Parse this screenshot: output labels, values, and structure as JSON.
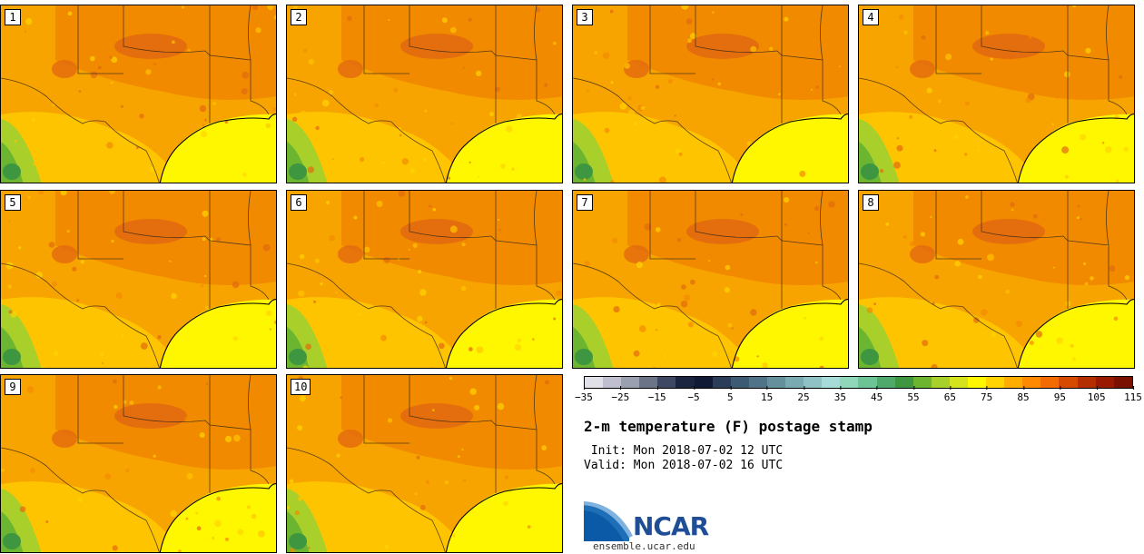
{
  "panels": [
    {
      "label": "1"
    },
    {
      "label": "2"
    },
    {
      "label": "3"
    },
    {
      "label": "4"
    },
    {
      "label": "5"
    },
    {
      "label": "6"
    },
    {
      "label": "7"
    },
    {
      "label": "8"
    },
    {
      "label": "9"
    },
    {
      "label": "10"
    }
  ],
  "colorbar": {
    "colors": [
      "#e0e0e8",
      "#bfbfcf",
      "#9aa0b0",
      "#6c7488",
      "#3f4862",
      "#1c2540",
      "#101a35",
      "#2a3e5a",
      "#3d5a75",
      "#4f7488",
      "#64909c",
      "#79a9b1",
      "#8fc2c4",
      "#a5dcd8",
      "#8fd7b8",
      "#6cc495",
      "#4ea96b",
      "#3f9640",
      "#6cb531",
      "#a8cf2a",
      "#d4e31e",
      "#fff700",
      "#ffd400",
      "#ffad00",
      "#ff8a00",
      "#f26a00",
      "#d64a00",
      "#b52e00",
      "#991a00",
      "#7a1000"
    ],
    "tick_labels": [
      "−35",
      "−25",
      "−15",
      "−5",
      "5",
      "15",
      "25",
      "35",
      "45",
      "55",
      "65",
      "75",
      "85",
      "95",
      "105",
      "115"
    ]
  },
  "title": "2-m temperature (F) postage stamp",
  "init_text": " Init: Mon 2018-07-02 12 UTC",
  "valid_text": "Valid: Mon 2018-07-02 16 UTC",
  "logo": {
    "name": "NCAR",
    "url": "ensemble.ucar.edu"
  }
}
